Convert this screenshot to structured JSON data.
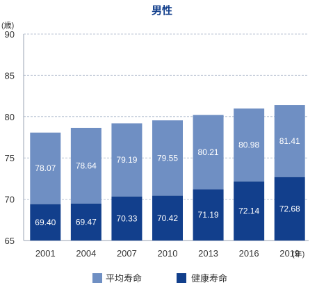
{
  "chart_data": {
    "type": "bar",
    "title": "男性",
    "y_unit_label": "(歳)",
    "x_unit_label": "(年)",
    "categories": [
      "2001",
      "2004",
      "2007",
      "2010",
      "2013",
      "2016",
      "2019"
    ],
    "series": [
      {
        "name": "平均寿命",
        "values": [
          78.07,
          78.64,
          79.19,
          79.55,
          80.21,
          80.98,
          81.41
        ],
        "color": "#6f8fc3"
      },
      {
        "name": "健康寿命",
        "values": [
          69.4,
          69.47,
          70.33,
          70.42,
          71.19,
          72.14,
          72.68
        ],
        "color": "#123f8c"
      }
    ],
    "value_labels": {
      "平均寿命": [
        "78.07",
        "78.64",
        "79.19",
        "79.55",
        "80.21",
        "80.98",
        "81.41"
      ],
      "健康寿命": [
        "69.40",
        "69.47",
        "70.33",
        "70.42",
        "71.19",
        "72.14",
        "72.68"
      ]
    },
    "ylim": [
      65,
      90
    ],
    "yticks": [
      65,
      70,
      75,
      80,
      85,
      90
    ],
    "grid": "dashed horizontal",
    "legend_position": "bottom",
    "colors": {
      "title": "#123f8c",
      "grid": "#b9c3d3",
      "border": "#9aa3b3"
    }
  }
}
